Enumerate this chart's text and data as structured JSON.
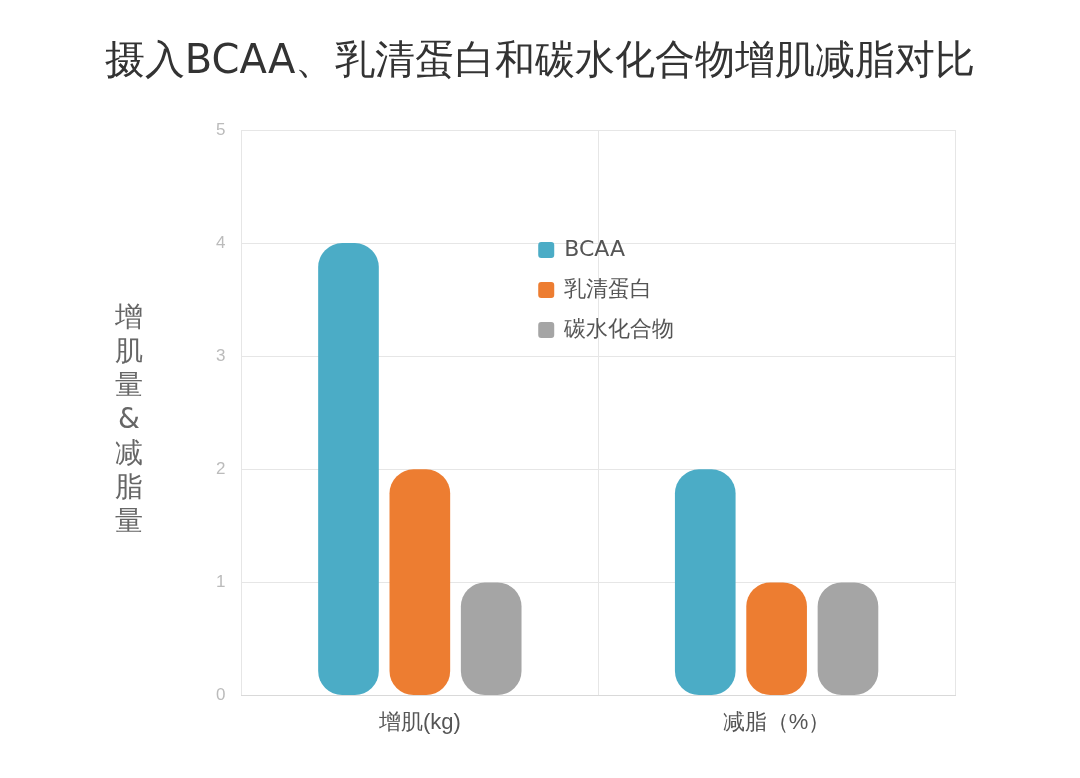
{
  "chart_data": {
    "type": "bar",
    "title": "摄入BCAA、乳清蛋白和碳水化合物增肌减脂对比",
    "ylabel": "增肌量&减脂量",
    "categories": [
      "增肌(kg)",
      "减脂（%）"
    ],
    "series": [
      {
        "name": "BCAA",
        "color": "#4bacc6",
        "values": [
          4,
          2
        ]
      },
      {
        "name": "乳清蛋白",
        "color": "#ed7d31",
        "values": [
          2,
          1
        ]
      },
      {
        "name": "碳水化合物",
        "color": "#a5a5a5",
        "values": [
          1,
          1
        ]
      }
    ],
    "ylim": [
      0,
      5
    ],
    "yticks": [
      0,
      1,
      2,
      3,
      4,
      5
    ],
    "grid": true,
    "legend": "top"
  }
}
